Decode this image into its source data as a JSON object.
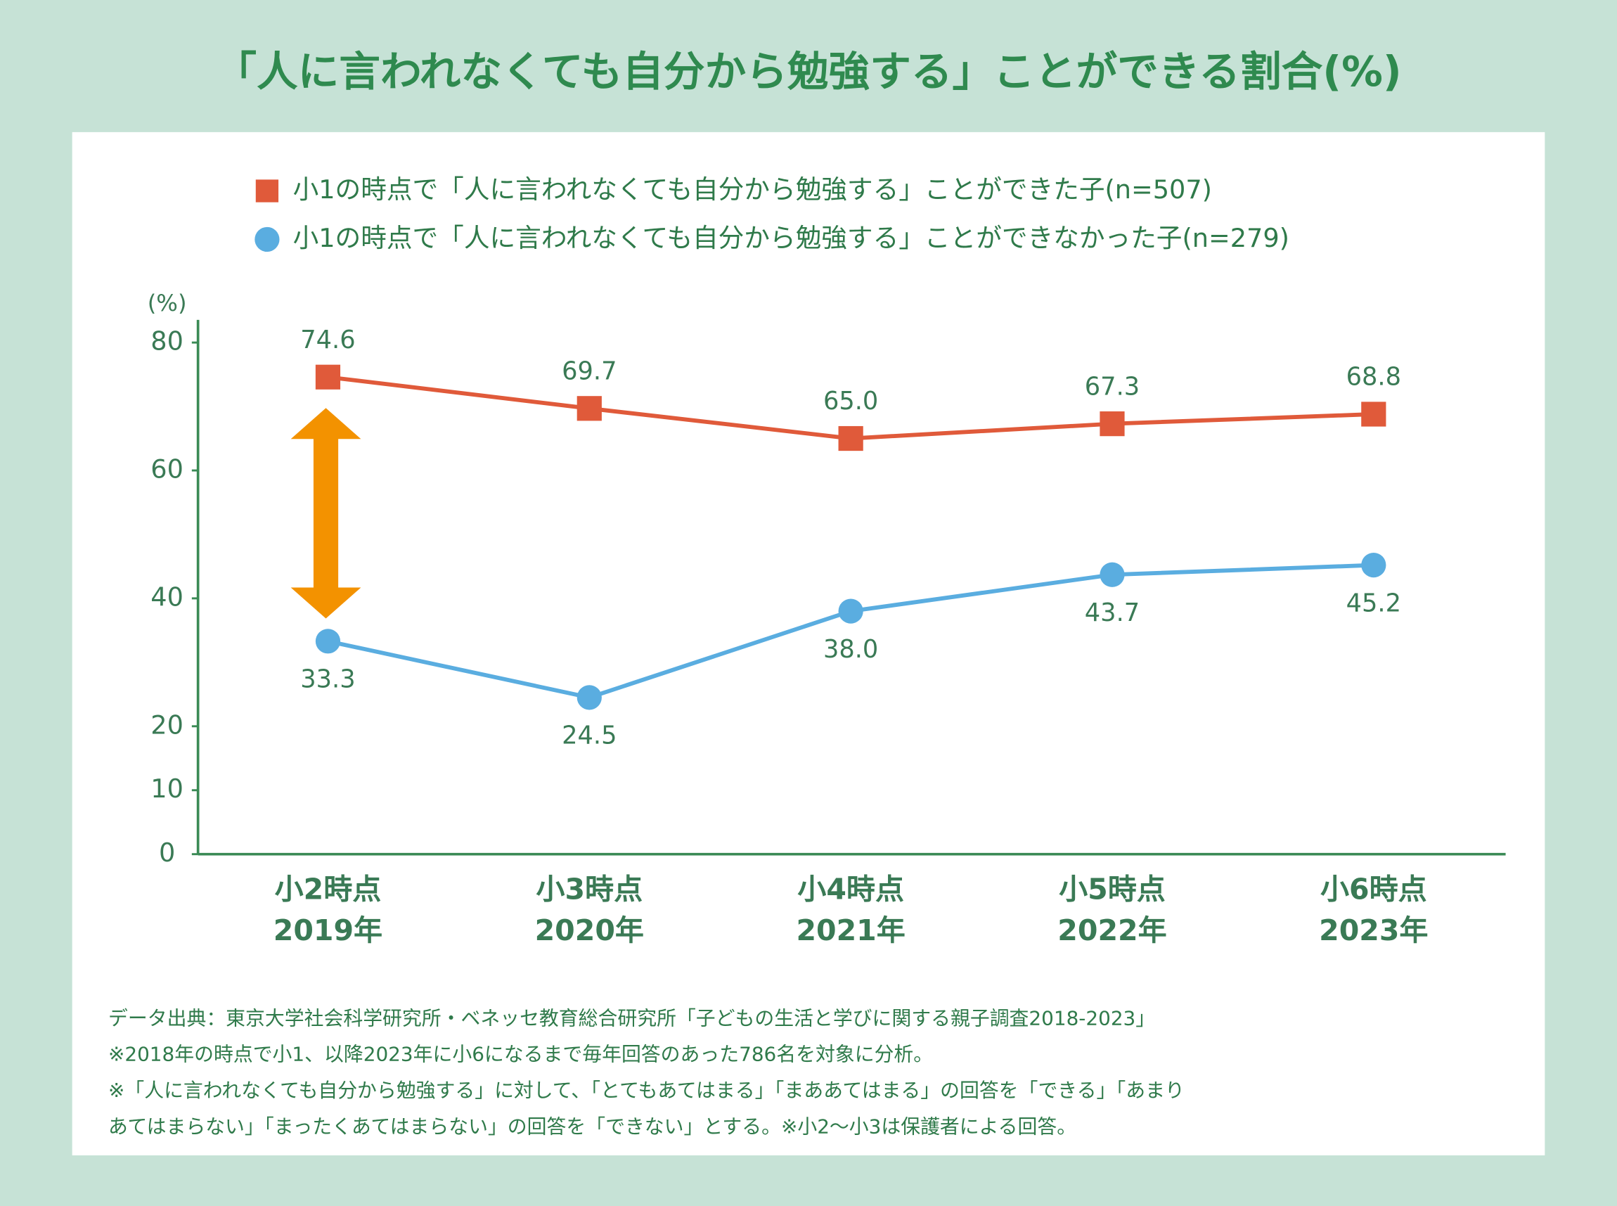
{
  "chart_data": {
    "type": "line",
    "title": "「人に言われなくても自分から勉強する」ことができる割合(%)",
    "y_unit": "(%)",
    "categories": [
      [
        "小2時点",
        "2019年"
      ],
      [
        "小3時点",
        "2020年"
      ],
      [
        "小4時点",
        "2021年"
      ],
      [
        "小5時点",
        "2022年"
      ],
      [
        "小6時点",
        "2023年"
      ]
    ],
    "series": [
      {
        "name": "小1の時点で「人に言われなくても自分から勉強する」ことができた子(n=507)",
        "color": "#e05a3a",
        "marker": "square",
        "values": [
          74.6,
          69.7,
          65.0,
          67.3,
          68.8
        ],
        "value_labels": [
          "74.6",
          "69.7",
          "65.0",
          "67.3",
          "68.8"
        ]
      },
      {
        "name": "小1の時点で「人に言われなくても自分から勉強する」ことができなかった子(n=279)",
        "color": "#5aade0",
        "marker": "circle",
        "values": [
          33.3,
          24.5,
          38.0,
          43.7,
          45.2
        ],
        "value_labels": [
          "33.3",
          "24.5",
          "38.0",
          "43.7",
          "45.2"
        ]
      }
    ],
    "ylim": [
      0,
      80
    ],
    "yticks": [
      0,
      10,
      20,
      40,
      60,
      80
    ],
    "grid": false,
    "notes": [
      "データ出典：東京大学社会科学研究所・ベネッセ教育総合研究所「子どもの生活と学びに関する親子調査2018-2023」",
      "※2018年の時点で小1、以降2023年に小6になるまで毎年回答のあった786名を対象に分析。",
      "※「人に言われなくても自分から勉強する」に対して、「とてもあてはまる」「まああてはまる」の回答を「できる」「あまり",
      "あてはまらない」「まったくあてはまらない」の回答を「できない」とする。※小2〜小3は保護者による回答。"
    ]
  }
}
